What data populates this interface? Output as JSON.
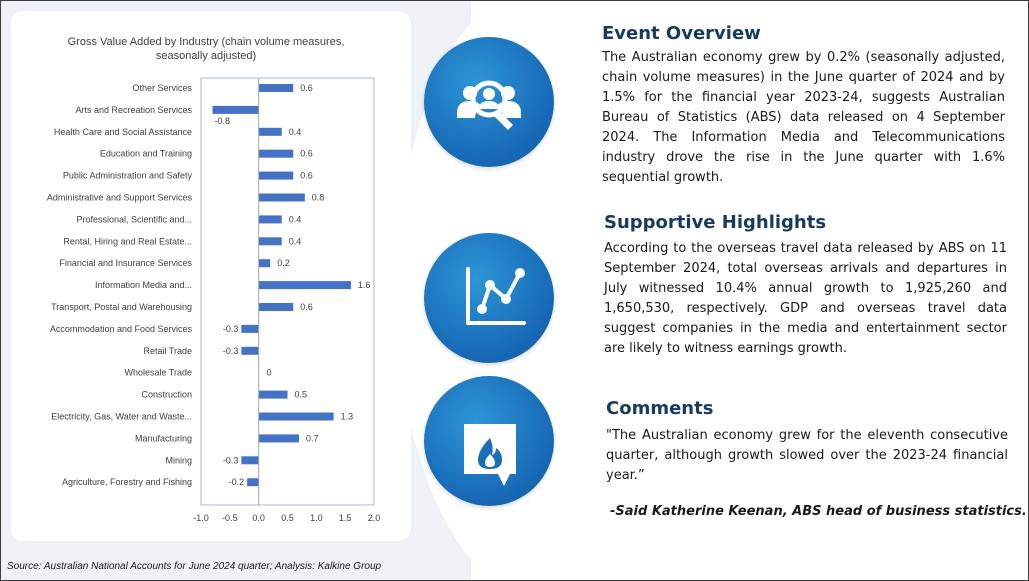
{
  "chart_data": {
    "type": "bar",
    "orientation": "horizontal",
    "title": "Gross Value Added by Industry (chain volume measures, seasonally adjusted)",
    "categories": [
      "Other Services",
      "Arts and Recreation Services",
      "Health Care and Social Assistance",
      "Education and Training",
      "Public Administration and Safety",
      "Administrative and Support Services",
      "Professional, Scientific and...",
      "Rental, Hiring and Real Estate...",
      "Financial and Insurance Services",
      "Information Media and...",
      "Transport, Postal and Warehousing",
      "Accommodation and Food Services",
      "Retail Trade",
      "Wholesale Trade",
      "Construction",
      "Electricity, Gas, Water and Waste...",
      "Manufacturing",
      "Mining",
      "Agriculture, Forestry and Fishing"
    ],
    "values": [
      0.6,
      -0.8,
      0.4,
      0.6,
      0.6,
      0.8,
      0.4,
      0.4,
      0.2,
      1.6,
      0.6,
      -0.3,
      -0.3,
      0,
      0.5,
      1.3,
      0.7,
      -0.3,
      -0.2
    ],
    "value_labels": [
      "0.6",
      "-0.8",
      "0.4",
      "0.6",
      "0.6",
      "0.8",
      "0.4",
      "0.4",
      "0.2",
      "1.6",
      "0.6",
      "-0.3",
      "-0.3",
      "0",
      "0.5",
      "1.3",
      "0.7",
      "-0.3",
      "-0.2"
    ],
    "xlim": [
      -1.0,
      2.0
    ],
    "xticks": [
      "-1.0",
      "-0.5",
      "0.0",
      "0.5",
      "1.0",
      "1.5",
      "2.0"
    ],
    "xlabel": "",
    "ylabel": "",
    "grid": false,
    "bar_color": "#4472c4"
  },
  "sections": [
    {
      "icon": "team-search-icon",
      "title": "Event Overview",
      "body": "The Australian economy grew by 0.2% (seasonally adjusted, chain volume measures) in the June quarter of 2024 and by 1.5% for the financial year 2023-24, suggests Australian Bureau of Statistics (ABS) data released on 4 September 2024. The Information Media and Telecommunications industry drove the rise in the June quarter with 1.6% sequential growth."
    },
    {
      "icon": "line-chart-icon",
      "title": "Supportive Highlights",
      "body": "According to the overseas travel data released by ABS on 11 September 2024, total overseas arrivals and departures in July witnessed 10.4% annual growth to 1,925,260 and 1,650,530, respectively. GDP and overseas travel data suggest companies in the media and entertainment sector are likely to witness earnings growth."
    },
    {
      "icon": "speech-bubble-flame-icon",
      "title": "Comments",
      "body": "\"The Australian economy grew for the eleventh consecutive quarter, although growth slowed over the 2023-24 financial year.”",
      "author": "-Said Katherine Keenan, ABS head of business statistics."
    }
  ],
  "source": "Source: Australian National Accounts for June 2024 quarter; Analysis: Kalkine Group",
  "colors": {
    "circle": "#1a6fb8",
    "heading": "#163b5f",
    "background": "#eef1f5"
  }
}
